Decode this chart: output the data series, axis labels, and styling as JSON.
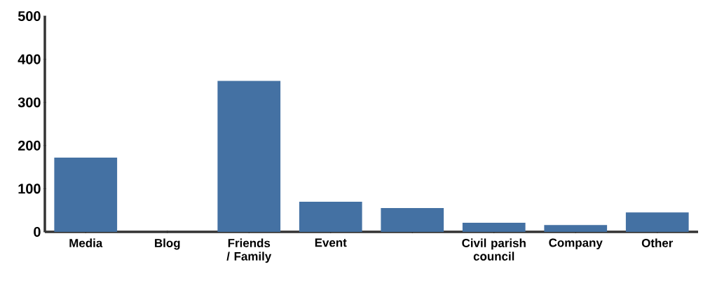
{
  "chart_data": {
    "type": "bar",
    "categories": [
      "Media",
      "Blog",
      "Friends / Family",
      "Event",
      null,
      "Civil parish council",
      "Company",
      "Other"
    ],
    "values": [
      172,
      0,
      350,
      70,
      55,
      21,
      16,
      45
    ],
    "color": "#4471a3",
    "ylim": [
      0,
      500
    ],
    "yticks": [
      0,
      100,
      200,
      300,
      400,
      500
    ]
  }
}
